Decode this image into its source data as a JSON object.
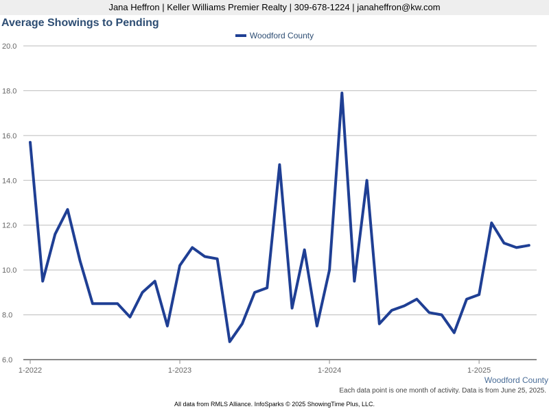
{
  "header": {
    "contact": "Jana Heffron | Keller Williams Premier Realty | 309-678-1224 | janaheffron@kw.com"
  },
  "chart_title": "Average Showings to Pending",
  "legend_label": "Woodford County",
  "series_label": "Woodford County",
  "note": "Each data point is one month of activity. Data is from June 25, 2025.",
  "footer": "All data from RMLS Alliance. InfoSparks © 2025 ShowingTime Plus, LLC.",
  "colors": {
    "series": "#1f3f94",
    "grid": "#bbbbbb",
    "axis": "#888888"
  },
  "chart_data": {
    "type": "line",
    "title": "Average Showings to Pending",
    "ylim": [
      6.0,
      20.0
    ],
    "yticks": [
      "6.0",
      "8.0",
      "10.0",
      "12.0",
      "14.0",
      "16.0",
      "18.0",
      "20.0"
    ],
    "xticks": [
      "1-2022",
      "1-2023",
      "1-2024",
      "1-2025"
    ],
    "grid": true,
    "legend_position": "top-center",
    "series": [
      {
        "name": "Woodford County",
        "x": [
          "2022-01",
          "2022-02",
          "2022-03",
          "2022-04",
          "2022-05",
          "2022-06",
          "2022-07",
          "2022-08",
          "2022-09",
          "2022-10",
          "2022-11",
          "2022-12",
          "2023-01",
          "2023-02",
          "2023-03",
          "2023-04",
          "2023-05",
          "2023-06",
          "2023-07",
          "2023-08",
          "2023-09",
          "2023-10",
          "2023-11",
          "2023-12",
          "2024-01",
          "2024-02",
          "2024-03",
          "2024-04",
          "2024-05",
          "2024-06",
          "2024-07",
          "2024-08",
          "2024-09",
          "2024-10",
          "2024-11",
          "2024-12",
          "2025-01",
          "2025-02",
          "2025-03",
          "2025-04",
          "2025-05"
        ],
        "values": [
          15.7,
          9.5,
          11.6,
          12.7,
          10.4,
          8.5,
          8.5,
          8.5,
          7.9,
          9.0,
          9.5,
          7.5,
          10.2,
          11.0,
          10.6,
          10.5,
          6.8,
          7.6,
          9.0,
          9.2,
          14.7,
          8.3,
          10.9,
          7.5,
          10.0,
          17.9,
          9.5,
          14.0,
          7.6,
          8.2,
          8.4,
          8.7,
          8.1,
          8.0,
          7.2,
          8.7,
          8.9,
          12.1,
          11.2,
          11.0,
          11.1
        ]
      }
    ]
  }
}
